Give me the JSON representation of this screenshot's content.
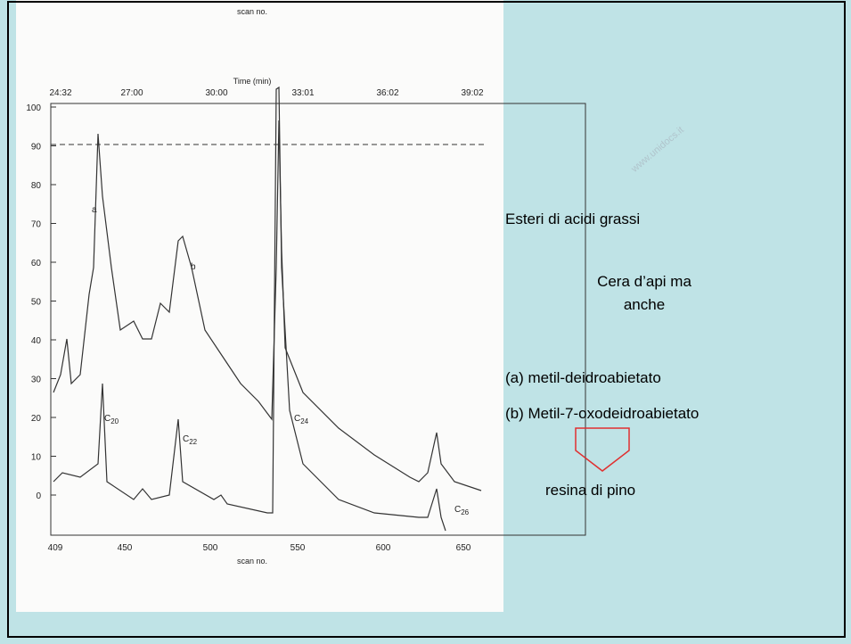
{
  "figure": {
    "top_axis_title": "scan no.",
    "time_axis_title": "Time (min)",
    "time_ticks": [
      "24:32",
      "27:00",
      "30:00",
      "33:01",
      "36:02",
      "39:02"
    ],
    "y_ticks": [
      100,
      90,
      80,
      70,
      60,
      50,
      40,
      30,
      20,
      10,
      0
    ],
    "scan_ticks": [
      409,
      450,
      500,
      550,
      600,
      650
    ],
    "bottom_axis_title": "scan no.",
    "peak_letters": [
      "a",
      "b"
    ],
    "peaks": [
      {
        "main": "C",
        "sub": "20"
      },
      {
        "main": "C",
        "sub": "22"
      },
      {
        "main": "C",
        "sub": "24"
      },
      {
        "main": "C",
        "sub": "26"
      }
    ]
  },
  "watermark": "www.unidocs.it",
  "notes": {
    "heading": "Esteri di acidi grassi",
    "wax_line1": "Cera d’api ma",
    "wax_line2": "anche",
    "item_a": "(a) metil-deidroabietato",
    "item_b": "(b) Metil-7-oxodeidroabietato",
    "conclusion": "resina di pino"
  }
}
